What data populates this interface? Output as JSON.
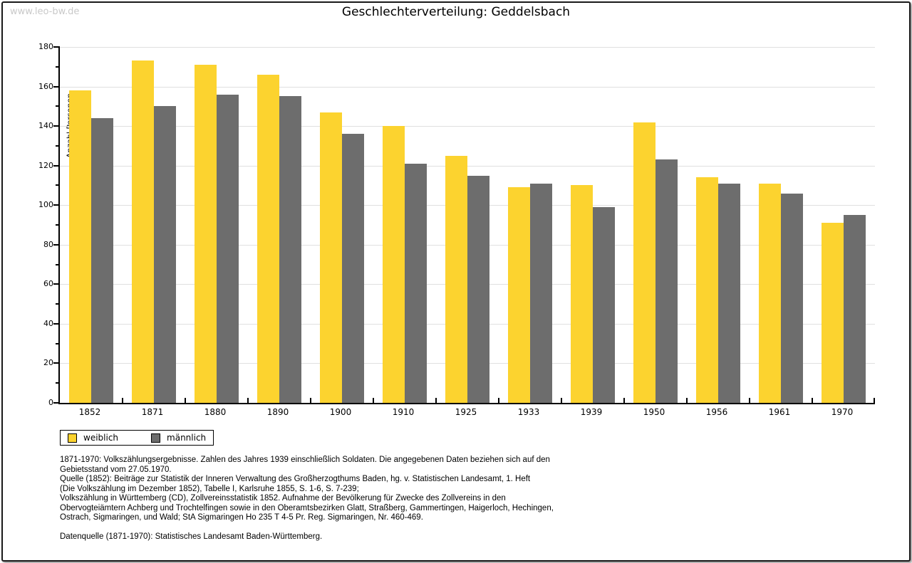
{
  "watermark": "www.leo-bw.de",
  "chart_data": {
    "type": "bar",
    "title": "Geschlechterverteilung: Geddelsbach",
    "ylabel": "Anzahl Personen",
    "xlabel": "",
    "ylim": [
      0,
      180
    ],
    "ytick_major": 20,
    "ytick_minor": 10,
    "grid": true,
    "legend_position": "bottom-left",
    "categories": [
      "1852",
      "1871",
      "1880",
      "1890",
      "1900",
      "1910",
      "1925",
      "1933",
      "1939",
      "1950",
      "1956",
      "1961",
      "1970"
    ],
    "series": [
      {
        "name": "weiblich",
        "color": "#FCD32F",
        "values": [
          158,
          173,
          171,
          166,
          147,
          140,
          125,
          109,
          110,
          142,
          114,
          111,
          91
        ]
      },
      {
        "name": "männlich",
        "color": "#6D6D6D",
        "values": [
          144,
          150,
          156,
          155,
          136,
          121,
          115,
          111,
          99,
          123,
          111,
          106,
          95
        ]
      }
    ]
  },
  "colors": {
    "female": "#FCD32F",
    "male": "#6D6D6D",
    "gridline": "#E0E0E0",
    "axis": "#000000",
    "watermark": "#C9C9C9"
  },
  "footnotes": {
    "lines": [
      "1871-1970: Volkszählungsergebnisse. Zahlen des Jahres 1939 einschließlich Soldaten. Die angegebenen Daten beziehen sich auf den",
      "Gebietsstand vom 27.05.1970.",
      "Quelle (1852): Beiträge zur Statistik der Inneren Verwaltung des Großherzogthums Baden, hg. v. Statistischen Landesamt, 1. Heft",
      "(Die Volkszählung im Dezember 1852), Tabelle I, Karlsruhe 1855, S. 1-6, S. 7-239;",
      "Volkszählung in Württemberg (CD), Zollvereinsstatistik 1852. Aufnahme der Bevölkerung für Zwecke des Zollvereins in den",
      "Obervogteiämtern Achberg und Trochtelfingen sowie in den Oberamtsbezirken Glatt, Straßberg, Gammertingen, Haigerloch, Hechingen,",
      "Ostrach, Sigmaringen, und Wald; StA Sigmaringen Ho 235 T 4-5 Pr. Reg. Sigmaringen, Nr. 460-469."
    ],
    "datasource": "Datenquelle (1871-1970): Statistisches Landesamt Baden-Württemberg."
  }
}
